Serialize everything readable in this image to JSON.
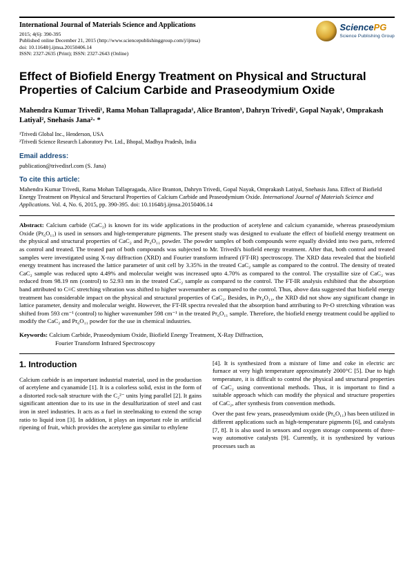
{
  "header": {
    "journal_title": "International Journal of Materials Science and Applications",
    "line1": "2015; 4(6): 390-395",
    "line2": "Published online December 21, 2015 (http://www.sciencepublishinggroup.com/j/ijmsa)",
    "line3": "doi: 10.11648/j.ijmsa.20150406.14",
    "line4": "ISSN: 2327-2635 (Print); ISSN: 2327-2643 (Online)",
    "logo_main_a": "Science",
    "logo_main_b": "PG",
    "logo_sub": "Science Publishing Group"
  },
  "title": "Effect of Biofield Energy Treatment on Physical and Structural Properties of Calcium Carbide and Praseodymium Oxide",
  "authors_html": "Mahendra Kumar Trivedi¹, Rama Mohan Tallapragada¹, Alice Branton¹, Dahryn Trivedi¹, Gopal Nayak¹, Omprakash Latiyal², Snehasis Jana²· *",
  "affil1": "¹Trivedi Global Inc., Henderson, USA",
  "affil2": "²Trivedi Science Research Laboratory Pvt. Ltd., Bhopal, Madhya Pradesh, India",
  "email_label": "Email address:",
  "email_line": "publication@trivedisrl.com (S. Jana)",
  "cite_label": "To cite this article:",
  "cite_authors": "Mahendra Kumar Trivedi, Rama Mohan Tallapragada, Alice Branton, Dahryn Trivedi, Gopal Nayak, Omprakash Latiyal, Snehasis Jana.",
  "cite_title": "Effect of Biofield Energy Treatment on Physical and Structural Properties of Calcium Carbide and Praseodymium Oxide.",
  "cite_journal": "International Journal of Materials Science and Applications.",
  "cite_tail": " Vol. 4, No. 6, 2015, pp. 390-395. doi: 10.11648/j.ijmsa.20150406.14",
  "abstract_label": "Abstract: ",
  "abstract_body": "Calcium carbide (CaC₂) is known for its wide applications in the production of acetylene and calcium cyanamide, whereas praseodymium Oxide (Pr₆O₁₁) is used in sensors and high-temperature pigments. The present study was designed to evaluate the effect of biofield energy treatment on the physical and structural properties of CaC₂ and Pr₆O₁₁ powder. The powder samples of both compounds were equally divided into two parts, referred as control and treated. The treated part of both compounds was subjected to Mr. Trivedi's biofield energy treatment. After that, both control and treated samples were investigated using X-ray diffraction (XRD) and Fourier transform infrared (FT-IR) spectroscopy. The XRD data revealed that the biofield energy treatment has increased the lattice parameter of unit cell by 3.35% in the treated CaC₂ sample as compared to the control. The density of treated CaC₂ sample was reduced upto 4.49% and molecular weight was increased upto 4.70% as compared to the control. The crystallite size of CaC₂ was reduced from 98.19 nm (control) to 52.93 nm in the treated CaC₂ sample as compared to the control. The FT-IR analysis exhibited that the absorption band attributed to C≡C stretching vibration was shifted to higher wavenumber as compared to the control. Thus, above data suggested that biofield energy treatment has considerable impact on the physical and structural properties of CaC₂. Besides, in Pr₆O₁₁, the XRD did not show any significant change in lattice parameter, density and molecular weight. However, the FT-IR spectra revealed that the absorption band attributing to Pr-O stretching vibration was shifted from 593 cm⁻¹ (control) to higher wavenumber 598 cm⁻¹ in the treated Pr₆O₁₁ sample. Therefore, the biofield energy treatment could be applied to modify the CaC₂ and Pr₆O₁₁ powder for the use in chemical industries.",
  "keywords_label": "Keywords: ",
  "keywords_line1": "Calcium Carbide, Praseodymium Oxide, Biofield Energy Treatment, X-Ray Diffraction,",
  "keywords_line2": "Fourier Transform Infrared Spectroscopy",
  "intro_heading": "1. Introduction",
  "col1_p1": "Calcium carbide is an important industrial material, used in the production of acetylene and cyanamide [1]. It is a colorless solid, exist in the form of a distorted rock-salt structure with the C₂²⁻ units lying parallel [2]. It gains significant attention due to its use in the desulfurization of steel and cast iron in steel industries. It acts as a fuel in steelmaking to extend the scrap ratio to liquid iron [3]. In addition, it plays an important role in artificial ripening of fruit, which provides the acetylene gas similar to ethylene",
  "col2_p1": "[4]. It is synthesized from a mixture of lime and coke in electric arc furnace at very high temperature approximately 2000°C [5]. Due to high temperature, it is difficult to control the physical and structural properties of CaC₂ using conventional methods. Thus, it is important to find a suitable approach which can modify the physical and structure properties of CaC₂, after synthesis from convention methods.",
  "col2_p2": "Over the past few years, praseodymium oxide (Pr₆O₁₁) has been utilized in different applications such as high-temperature pigments [6], and catalysts [7, 8]. It is also used in sensors and oxygen storage components of three-way automotive catalysts [9]. Currently, it is synthesized by various processes such as"
}
